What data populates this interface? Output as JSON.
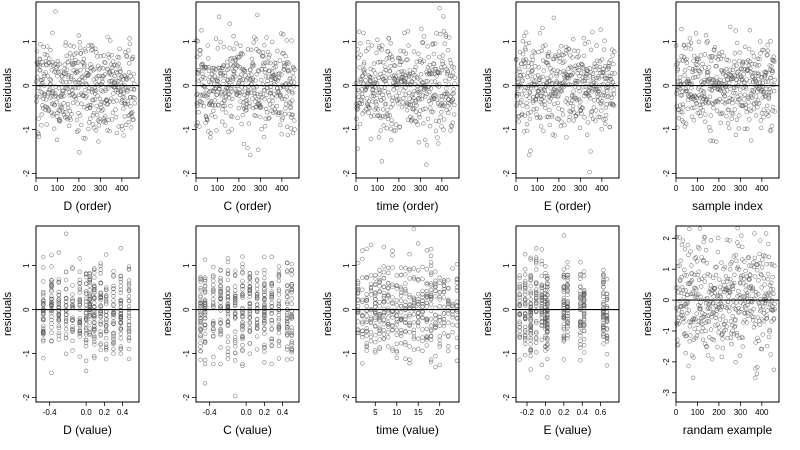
{
  "chart_data": [
    {
      "type": "scatter",
      "xlabel": "D (order)",
      "ylabel": "residuals",
      "xlim": [
        0,
        480
      ],
      "ylim": [
        -2.1,
        1.9
      ],
      "xticks": [
        0,
        100,
        200,
        300,
        400
      ],
      "xtick_labels": [
        "0",
        "100",
        "200",
        "300",
        "400"
      ],
      "yticks": [
        -2,
        -1,
        0,
        1
      ],
      "ytick_labels": [
        "-2",
        "-1",
        "0",
        "1"
      ],
      "hline": 0,
      "points_per_panel": 470,
      "x_kind": "order",
      "seed": 101,
      "spread": 0.52
    },
    {
      "type": "scatter",
      "xlabel": "C (order)",
      "ylabel": "residuals",
      "xlim": [
        0,
        480
      ],
      "ylim": [
        -2.1,
        1.9
      ],
      "xticks": [
        0,
        100,
        200,
        300,
        400
      ],
      "xtick_labels": [
        "0",
        "100",
        "200",
        "300",
        "400"
      ],
      "yticks": [
        -2,
        -1,
        0,
        1
      ],
      "ytick_labels": [
        "-2",
        "-1",
        "0",
        "1"
      ],
      "hline": 0,
      "points_per_panel": 470,
      "x_kind": "order",
      "seed": 202,
      "spread": 0.52
    },
    {
      "type": "scatter",
      "xlabel": "time (order)",
      "ylabel": "residuals",
      "xlim": [
        0,
        480
      ],
      "ylim": [
        -2.1,
        1.9
      ],
      "xticks": [
        0,
        100,
        200,
        300,
        400
      ],
      "xtick_labels": [
        "0",
        "100",
        "200",
        "300",
        "400"
      ],
      "yticks": [
        -2,
        -1,
        0,
        1
      ],
      "ytick_labels": [
        "-2",
        "-1",
        "0",
        "1"
      ],
      "hline": 0,
      "points_per_panel": 470,
      "x_kind": "order",
      "seed": 303,
      "spread": 0.52
    },
    {
      "type": "scatter",
      "xlabel": "E (order)",
      "ylabel": "residuals",
      "xlim": [
        0,
        480
      ],
      "ylim": [
        -2.1,
        1.9
      ],
      "xticks": [
        0,
        100,
        200,
        300,
        400
      ],
      "xtick_labels": [
        "0",
        "100",
        "200",
        "300",
        "400"
      ],
      "yticks": [
        -2,
        -1,
        0,
        1
      ],
      "ytick_labels": [
        "-2",
        "-1",
        "0",
        "1"
      ],
      "hline": 0,
      "points_per_panel": 470,
      "x_kind": "order",
      "seed": 404,
      "spread": 0.52
    },
    {
      "type": "scatter",
      "xlabel": "sample index",
      "ylabel": "residuals",
      "xlim": [
        0,
        480
      ],
      "ylim": [
        -2.1,
        1.9
      ],
      "xticks": [
        0,
        100,
        200,
        300,
        400
      ],
      "xtick_labels": [
        "0",
        "100",
        "200",
        "300",
        "400"
      ],
      "yticks": [
        -2,
        -1,
        0,
        1
      ],
      "ytick_labels": [
        "-2",
        "-1",
        "0",
        "1"
      ],
      "hline": 0,
      "points_per_panel": 470,
      "x_kind": "order",
      "seed": 505,
      "spread": 0.52
    },
    {
      "type": "scatter",
      "xlabel": "D (value)",
      "ylabel": "residuals",
      "xlim": [
        -0.55,
        0.58
      ],
      "ylim": [
        -2.1,
        1.9
      ],
      "xticks": [
        -0.4,
        0.0,
        0.2,
        0.4
      ],
      "xtick_labels": [
        "-0.4",
        "0.0",
        "0.2",
        "0.4"
      ],
      "yticks": [
        -2,
        -1,
        0,
        1
      ],
      "ytick_labels": [
        "-2",
        "-1",
        "0",
        "1"
      ],
      "hline": 0,
      "points_per_panel": 470,
      "x_kind": "discrete",
      "x_levels": [
        -0.47,
        -0.38,
        -0.3,
        -0.22,
        -0.15,
        -0.07,
        0.0,
        0.04,
        0.09,
        0.16,
        0.22,
        0.3,
        0.38,
        0.47
      ],
      "seed": 606,
      "spread": 0.52
    },
    {
      "type": "scatter",
      "xlabel": "C (value)",
      "ylabel": "residuals",
      "xlim": [
        -0.55,
        0.58
      ],
      "ylim": [
        -2.1,
        1.9
      ],
      "xticks": [
        -0.4,
        0.0,
        0.2,
        0.4
      ],
      "xtick_labels": [
        "-0.4",
        "0.0",
        "0.2",
        "0.4"
      ],
      "yticks": [
        -2,
        -1,
        0,
        1
      ],
      "ytick_labels": [
        "-2",
        "-1",
        "0",
        "1"
      ],
      "hline": 0,
      "points_per_panel": 470,
      "x_kind": "discrete",
      "x_levels": [
        -0.5,
        -0.45,
        -0.36,
        -0.28,
        -0.2,
        -0.12,
        -0.04,
        0.04,
        0.12,
        0.2,
        0.28,
        0.36,
        0.45,
        0.5
      ],
      "seed": 707,
      "spread": 0.52
    },
    {
      "type": "scatter",
      "xlabel": "time (value)",
      "ylabel": "residuals",
      "xlim": [
        0.5,
        24.5
      ],
      "ylim": [
        -2.1,
        1.9
      ],
      "xticks": [
        5,
        10,
        15,
        20
      ],
      "xtick_labels": [
        "5",
        "10",
        "15",
        "20"
      ],
      "yticks": [
        -2,
        -1,
        0,
        1
      ],
      "ytick_labels": [
        "-2",
        "-1",
        "0",
        "1"
      ],
      "hline": 0,
      "points_per_panel": 470,
      "x_kind": "discrete",
      "x_levels": [
        1,
        2,
        3,
        4,
        5,
        6,
        7,
        8,
        9,
        10,
        11,
        12,
        13,
        14,
        15,
        16,
        17,
        18,
        19,
        20,
        21,
        22,
        23,
        24
      ],
      "seed": 808,
      "spread": 0.52
    },
    {
      "type": "scatter",
      "xlabel": "E (value)",
      "ylabel": "residuals",
      "xlim": [
        -0.32,
        0.8
      ],
      "ylim": [
        -2.1,
        1.9
      ],
      "xticks": [
        -0.2,
        0.0,
        0.2,
        0.4,
        0.6
      ],
      "xtick_labels": [
        "-0.2",
        "0.0",
        "0.2",
        "0.4",
        "0.6"
      ],
      "yticks": [
        -2,
        -1,
        0,
        1
      ],
      "ytick_labels": [
        "-2",
        "-1",
        "0",
        "1"
      ],
      "hline": 0,
      "points_per_panel": 470,
      "x_kind": "discrete",
      "x_levels": [
        -0.28,
        -0.22,
        -0.16,
        -0.1,
        -0.04,
        0.0,
        0.02,
        0.2,
        0.24,
        0.38,
        0.42,
        0.63,
        0.67
      ],
      "seed": 909,
      "spread": 0.52
    },
    {
      "type": "scatter",
      "xlabel": "randam example",
      "ylabel": "residuals",
      "xlim": [
        0,
        480
      ],
      "ylim": [
        -3.3,
        2.4
      ],
      "xticks": [
        0,
        100,
        200,
        300,
        400
      ],
      "xtick_labels": [
        "0",
        "100",
        "200",
        "300",
        "400"
      ],
      "yticks": [
        -3,
        -2,
        -1,
        0,
        1,
        2
      ],
      "ytick_labels": [
        "-3",
        "-2",
        "-1",
        "0",
        "1",
        "2"
      ],
      "hline": 0,
      "points_per_panel": 470,
      "x_kind": "order",
      "seed": 1010,
      "spread": 0.95
    }
  ]
}
